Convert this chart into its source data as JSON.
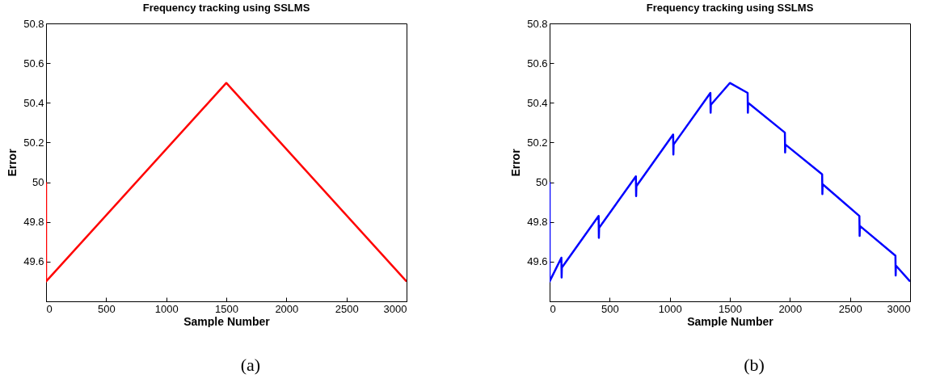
{
  "chart_data": [
    {
      "type": "line",
      "title": "Frequency tracking using SSLMS",
      "xlabel": "Sample Number",
      "ylabel": "Error",
      "annotations": [
        "(a)"
      ],
      "xlim": [
        0,
        3000
      ],
      "xticks": [
        0,
        500,
        1000,
        1500,
        2000,
        2500,
        3000
      ],
      "ylim": [
        49.4,
        50.8
      ],
      "yticks": [
        49.6,
        49.8,
        50,
        50.2,
        50.4,
        50.6,
        50.8
      ],
      "grid": false,
      "marker": "none",
      "series": [
        {
          "color": "#ff0000",
          "x": [
            0,
            0,
            1500,
            3000
          ],
          "values": [
            50.0,
            49.5,
            50.5,
            49.5
          ]
        }
      ]
    },
    {
      "type": "line",
      "title": "Frequency tracking using SSLMS",
      "xlabel": "Sample Number",
      "ylabel": "Error",
      "annotations": [
        "(b)"
      ],
      "xlim": [
        0,
        3000
      ],
      "xticks": [
        0,
        500,
        1000,
        1500,
        2000,
        2500,
        3000
      ],
      "ylim": [
        49.4,
        50.8
      ],
      "yticks": [
        49.6,
        49.8,
        50,
        50.2,
        50.4,
        50.6,
        50.8
      ],
      "grid": false,
      "marker": "none",
      "series": [
        {
          "color": "#0000ff",
          "x": [
            0,
            0,
            98,
            100,
            102,
            408,
            410,
            412,
            718,
            720,
            722,
            1028,
            1030,
            1032,
            1338,
            1340,
            1342,
            1500,
            1648,
            1650,
            1652,
            1958,
            1960,
            1962,
            2268,
            2270,
            2272,
            2578,
            2580,
            2582,
            2878,
            2880,
            2882,
            3000
          ],
          "values": [
            50.0,
            49.5,
            49.62,
            49.52,
            49.57,
            49.83,
            49.72,
            49.77,
            50.03,
            49.93,
            49.98,
            50.24,
            50.14,
            50.19,
            50.45,
            50.35,
            50.39,
            50.5,
            50.45,
            50.35,
            50.4,
            50.25,
            50.15,
            50.19,
            50.04,
            49.94,
            49.99,
            49.83,
            49.73,
            49.78,
            49.63,
            49.53,
            49.58,
            49.5
          ]
        }
      ]
    }
  ]
}
